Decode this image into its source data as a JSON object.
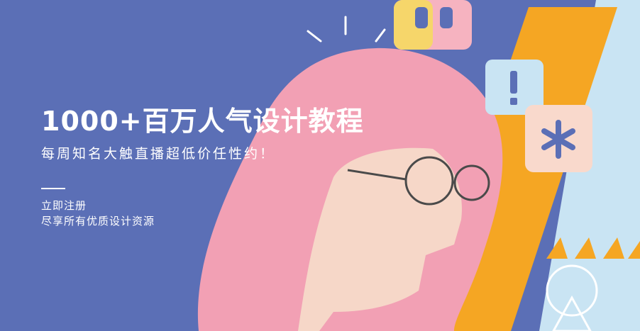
{
  "banner": {
    "headline": "1000+百万人气设计教程",
    "subhead": "每周知名大触直播超低价任性约！",
    "cta_label": "立即注册",
    "description": "尽享所有优质设计资源",
    "colors": {
      "background": "#5b6fb6",
      "hair": "#f2a0b4",
      "skin": "#f6d7c8",
      "orange": "#f5a623",
      "lightblue": "#c9e4f3",
      "yellow": "#f6d66a"
    },
    "icons": [
      "exclamation-icon",
      "asterisk-icon",
      "letter-b-icon",
      "triangle-icon"
    ]
  }
}
